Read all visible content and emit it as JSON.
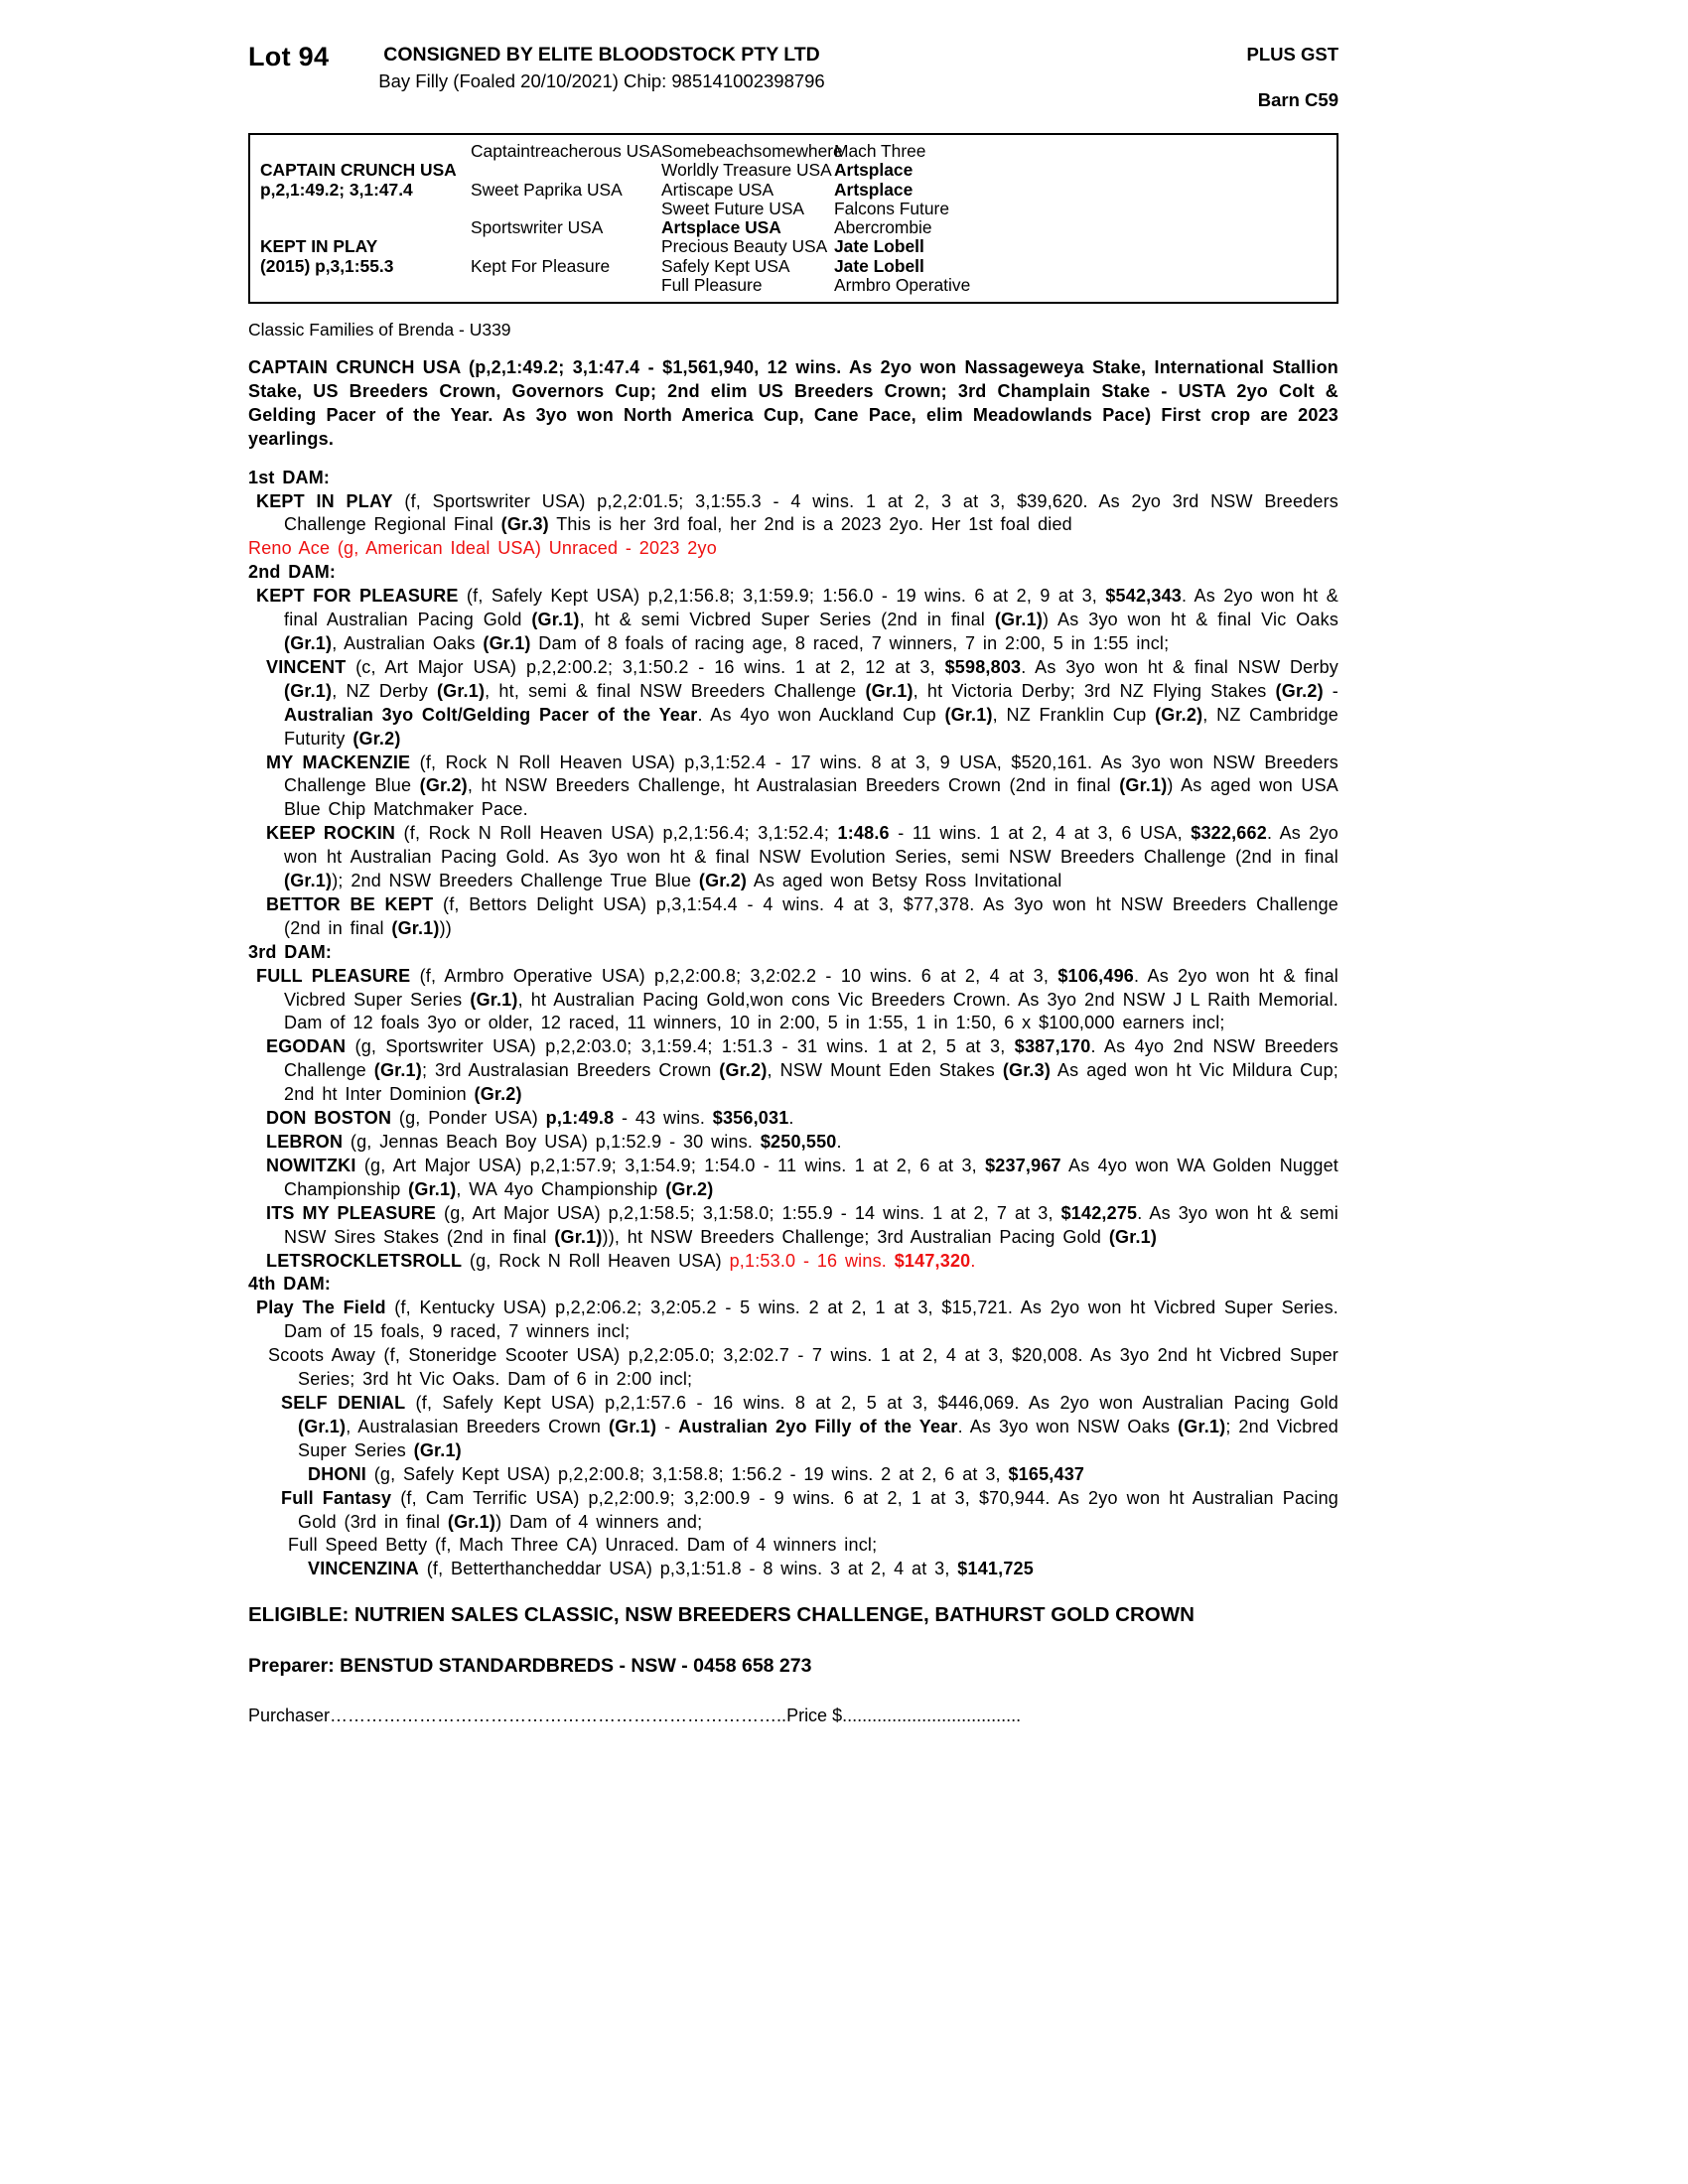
{
  "colors": {
    "accent_red": "#ee1111"
  },
  "header": {
    "lot": "Lot 94",
    "consignor": "CONSIGNED BY ELITE BLOODSTOCK PTY LTD",
    "plus_gst": "PLUS GST",
    "description": "Bay Filly (Foaled 20/10/2021) Chip: 985141002398796",
    "barn": "Barn C59"
  },
  "pedigree": {
    "sire": {
      "name": "CAPTAIN CRUNCH USA",
      "record": "p,2,1:49.2; 3,1:47.4"
    },
    "dam": {
      "name": "KEPT IN PLAY",
      "record": "(2015) p,3,1:55.3"
    },
    "gen2": [
      {
        "t": "Captaintreacherous USA"
      },
      {
        "t": "Sweet Paprika USA"
      },
      {
        "t": "Sportswriter USA"
      },
      {
        "t": "Kept For Pleasure"
      }
    ],
    "gen3": [
      {
        "t": "Somebeachsomewhere"
      },
      {
        "t": "Worldly Treasure USA"
      },
      {
        "t": "Artiscape USA"
      },
      {
        "t": "Sweet Future USA"
      },
      {
        "t": "Artsplace USA",
        "b": true
      },
      {
        "t": "Precious Beauty USA"
      },
      {
        "t": "Safely Kept USA"
      },
      {
        "t": "Full Pleasure"
      }
    ],
    "gen4": [
      {
        "t": "Mach Three"
      },
      {
        "t": "Artsplace",
        "b": true
      },
      {
        "t": "Artsplace",
        "b": true
      },
      {
        "t": "Falcons Future"
      },
      {
        "t": "Abercrombie"
      },
      {
        "t": "Jate Lobell",
        "b": true
      },
      {
        "t": "Jate Lobell",
        "b": true
      },
      {
        "t": "Armbro Operative"
      }
    ]
  },
  "family_line": "Classic Families of Brenda - U339",
  "body": {
    "sire_para": [
      {
        "t": "CAPTAIN CRUNCH USA (p,2,1:49.2; 3,1:47.4 - $1,561,940, 12 wins. As 2yo won Nassageweya Stake, International Stallion Stake, US Breeders Crown, Governors Cup; 2nd elim US Breeders Crown; 3rd Champlain Stake - USTA 2yo Colt & Gelding Pacer of the Year. As 3yo won North America Cup, Cane Pace, elim Meadowlands Pace) First crop are 2023 yearlings.",
        "b": true
      }
    ],
    "dam1_heading": "1st DAM:",
    "kept_in_play": [
      {
        "t": "KEPT IN PLAY",
        "b": true
      },
      {
        "t": " (f, Sportswriter USA) p,2,2:01.5; 3,1:55.3 - 4 wins. 1 at 2, 3 at 3, $39,620. As 2yo 3rd NSW Breeders Challenge Regional Final "
      },
      {
        "t": "(Gr.3)",
        "b": true
      },
      {
        "t": " This is her 3rd foal, her 2nd is a 2023 2yo. Her 1st foal died"
      }
    ],
    "reno_ace": [
      {
        "t": "Reno Ace (g, American Ideal USA) Unraced - 2023 2yo",
        "r": true
      }
    ],
    "dam2_heading": "2nd DAM:",
    "kept_for_pleasure": [
      {
        "t": "KEPT FOR PLEASURE",
        "b": true
      },
      {
        "t": " (f, Safely Kept USA) p,2,1:56.8; 3,1:59.9; 1:56.0 - 19 wins. 6 at 2, 9 at 3, "
      },
      {
        "t": "$542,343",
        "b": true
      },
      {
        "t": ". As 2yo won ht & final Australian Pacing Gold "
      },
      {
        "t": "(Gr.1)",
        "b": true
      },
      {
        "t": ", ht & semi Vicbred Super Series (2nd in final "
      },
      {
        "t": "(Gr.1)",
        "b": true
      },
      {
        "t": ") As 3yo won ht & final Vic Oaks "
      },
      {
        "t": "(Gr.1)",
        "b": true
      },
      {
        "t": ", Australian Oaks "
      },
      {
        "t": "(Gr.1)",
        "b": true
      },
      {
        "t": " Dam of 8 foals of racing age, 8 raced, 7 winners, 7 in 2:00, 5 in 1:55 incl;"
      }
    ],
    "vincent": [
      {
        "t": "VINCENT",
        "b": true
      },
      {
        "t": " (c, Art Major USA) p,2,2:00.2; 3,1:50.2 - 16 wins. 1 at 2, 12 at 3, "
      },
      {
        "t": "$598,803",
        "b": true
      },
      {
        "t": ". As 3yo won ht & final NSW Derby "
      },
      {
        "t": "(Gr.1)",
        "b": true
      },
      {
        "t": ", NZ Derby "
      },
      {
        "t": "(Gr.1)",
        "b": true
      },
      {
        "t": ", ht, semi & final NSW Breeders Challenge "
      },
      {
        "t": "(Gr.1)",
        "b": true
      },
      {
        "t": ", ht Victoria Derby; 3rd NZ Flying Stakes "
      },
      {
        "t": "(Gr.2)",
        "b": true
      },
      {
        "t": " - "
      },
      {
        "t": "Australian 3yo Colt/Gelding Pacer of the Year",
        "b": true
      },
      {
        "t": ". As 4yo won Auckland Cup "
      },
      {
        "t": "(Gr.1)",
        "b": true
      },
      {
        "t": ", NZ Franklin Cup "
      },
      {
        "t": "(Gr.2)",
        "b": true
      },
      {
        "t": ", NZ Cambridge Futurity "
      },
      {
        "t": "(Gr.2)",
        "b": true
      }
    ],
    "my_mackenzie": [
      {
        "t": "MY MACKENZIE",
        "b": true
      },
      {
        "t": " (f, Rock N Roll Heaven USA) p,3,1:52.4 - 17 wins. 8 at 3, 9 USA, $520,161. As 3yo won NSW Breeders Challenge Blue "
      },
      {
        "t": "(Gr.2)",
        "b": true
      },
      {
        "t": ", ht NSW Breeders Challenge, ht Australasian Breeders Crown (2nd in final "
      },
      {
        "t": "(Gr.1)",
        "b": true
      },
      {
        "t": ") As aged won USA Blue Chip Matchmaker Pace."
      }
    ],
    "keep_rockin": [
      {
        "t": "KEEP ROCKIN",
        "b": true
      },
      {
        "t": " (f, Rock N Roll Heaven USA) p,2,1:56.4; 3,1:52.4; "
      },
      {
        "t": "1:48.6",
        "b": true
      },
      {
        "t": " - 11 wins. 1 at 2, 4 at 3, 6 USA, "
      },
      {
        "t": "$322,662",
        "b": true
      },
      {
        "t": ". As 2yo won ht Australian Pacing Gold. As 3yo won ht & final NSW Evolution Series, semi NSW Breeders Challenge (2nd in final "
      },
      {
        "t": "(Gr.1)",
        "b": true
      },
      {
        "t": "); 2nd NSW Breeders Challenge True Blue "
      },
      {
        "t": "(Gr.2)",
        "b": true
      },
      {
        "t": " As aged won Betsy Ross Invitational"
      }
    ],
    "bettor_be_kept": [
      {
        "t": "BETTOR BE KEPT",
        "b": true
      },
      {
        "t": " (f, Bettors Delight USA) p,3,1:54.4 - 4 wins. 4 at 3, $77,378. As 3yo won ht NSW Breeders Challenge (2nd in final "
      },
      {
        "t": "(Gr.1)",
        "b": true
      },
      {
        "t": "))"
      }
    ],
    "dam3_heading": "3rd DAM:",
    "full_pleasure": [
      {
        "t": "FULL PLEASURE",
        "b": true
      },
      {
        "t": " (f, Armbro Operative USA) p,2,2:00.8; 3,2:02.2 - 10 wins. 6 at 2, 4 at 3, "
      },
      {
        "t": "$106,496",
        "b": true
      },
      {
        "t": ". As 2yo won ht & final Vicbred Super Series "
      },
      {
        "t": "(Gr.1)",
        "b": true
      },
      {
        "t": ", ht Australian Pacing Gold,won cons Vic Breeders Crown. As 3yo 2nd NSW J L Raith Memorial. Dam of 12 foals 3yo or older, 12 raced, 11 winners, 10 in 2:00, 5 in 1:55, 1 in 1:50, 6 x $100,000 earners incl;"
      }
    ],
    "egodan": [
      {
        "t": "EGODAN",
        "b": true
      },
      {
        "t": " (g, Sportswriter USA) p,2,2:03.0; 3,1:59.4; 1:51.3 - 31 wins. 1 at 2, 5 at 3, "
      },
      {
        "t": "$387,170",
        "b": true
      },
      {
        "t": ". As 4yo 2nd NSW Breeders Challenge "
      },
      {
        "t": "(Gr.1)",
        "b": true
      },
      {
        "t": "; 3rd Australasian Breeders Crown "
      },
      {
        "t": "(Gr.2)",
        "b": true
      },
      {
        "t": ", NSW Mount Eden Stakes "
      },
      {
        "t": "(Gr.3)",
        "b": true
      },
      {
        "t": " As aged won ht Vic Mildura Cup; 2nd ht Inter Dominion "
      },
      {
        "t": "(Gr.2)",
        "b": true
      }
    ],
    "don_boston": [
      {
        "t": "DON BOSTON",
        "b": true
      },
      {
        "t": " (g, Ponder USA) "
      },
      {
        "t": "p,1:49.8",
        "b": true
      },
      {
        "t": " - 43 wins. "
      },
      {
        "t": "$356,031",
        "b": true
      },
      {
        "t": "."
      }
    ],
    "lebron": [
      {
        "t": "LEBRON",
        "b": true
      },
      {
        "t": " (g, Jennas Beach Boy USA) p,1:52.9 - 30 wins. "
      },
      {
        "t": "$250,550",
        "b": true
      },
      {
        "t": "."
      }
    ],
    "nowitzki": [
      {
        "t": "NOWITZKI",
        "b": true
      },
      {
        "t": " (g, Art Major USA) p,2,1:57.9; 3,1:54.9; 1:54.0 - 11 wins. 1 at 2, 6 at 3, "
      },
      {
        "t": "$237,967",
        "b": true
      },
      {
        "t": " As 4yo won WA Golden Nugget Championship "
      },
      {
        "t": "(Gr.1)",
        "b": true
      },
      {
        "t": ", WA 4yo Championship "
      },
      {
        "t": "(Gr.2)",
        "b": true
      }
    ],
    "its_my_pleasure": [
      {
        "t": "ITS MY PLEASURE",
        "b": true
      },
      {
        "t": " (g, Art Major USA) p,2,1:58.5; 3,1:58.0; 1:55.9 - 14 wins. 1 at 2, 7 at 3, "
      },
      {
        "t": "$142,275",
        "b": true
      },
      {
        "t": ". As 3yo won ht & semi NSW Sires Stakes (2nd in final "
      },
      {
        "t": "(Gr.1)",
        "b": true
      },
      {
        "t": ")), ht NSW Breeders Challenge; 3rd Australian Pacing Gold "
      },
      {
        "t": "(Gr.1)",
        "b": true
      }
    ],
    "letsrockletsroll": [
      {
        "t": "LETSROCKLETSROLL",
        "b": true
      },
      {
        "t": " (g, Rock N Roll Heaven USA) "
      },
      {
        "t": "p,1:53.0 - 16 wins. ",
        "r": true
      },
      {
        "t": "$147,320",
        "b": true,
        "r": true
      },
      {
        "t": ".",
        "r": true
      }
    ],
    "dam4_heading": "4th DAM:",
    "play_the_field": [
      {
        "t": "Play The Field",
        "b": true
      },
      {
        "t": " (f, Kentucky USA) p,2,2:06.2; 3,2:05.2 - 5 wins. 2 at 2, 1 at 3, $15,721. As 2yo won ht Vicbred Super Series. Dam of 15 foals, 9 raced, 7 winners incl;"
      }
    ],
    "scoots_away": [
      {
        "t": "Scoots Away (f, Stoneridge Scooter USA) p,2,2:05.0; 3,2:02.7 - 7 wins. 1 at 2, 4 at 3, $20,008. As 3yo 2nd ht Vicbred Super Series; 3rd ht Vic Oaks. Dam of 6 in 2:00 incl;"
      }
    ],
    "self_denial": [
      {
        "t": "SELF DENIAL",
        "b": true
      },
      {
        "t": " (f, Safely Kept USA) p,2,1:57.6 - 16 wins. 8 at 2, 5 at 3, $446,069. As 2yo won Australian Pacing Gold "
      },
      {
        "t": "(Gr.1)",
        "b": true
      },
      {
        "t": ", Australasian Breeders Crown "
      },
      {
        "t": "(Gr.1)",
        "b": true
      },
      {
        "t": " - "
      },
      {
        "t": "Australian 2yo Filly of the Year",
        "b": true
      },
      {
        "t": ". As 3yo won NSW Oaks "
      },
      {
        "t": "(Gr.1)",
        "b": true
      },
      {
        "t": "; 2nd Vicbred Super Series "
      },
      {
        "t": "(Gr.1)",
        "b": true
      }
    ],
    "dhoni": [
      {
        "t": "DHONI",
        "b": true
      },
      {
        "t": " (g, Safely Kept USA) p,2,2:00.8; 3,1:58.8; 1:56.2 - 19 wins. 2 at 2, 6 at 3, "
      },
      {
        "t": "$165,437",
        "b": true
      }
    ],
    "full_fantasy": [
      {
        "t": "Full Fantasy",
        "b": true
      },
      {
        "t": " (f, Cam Terrific USA) p,2,2:00.9; 3,2:00.9 - 9 wins. 6 at 2, 1 at 3, $70,944. As 2yo won ht Australian Pacing Gold (3rd in final "
      },
      {
        "t": "(Gr.1)",
        "b": true
      },
      {
        "t": ") Dam of 4 winners and;"
      }
    ],
    "full_speed_betty": [
      {
        "t": "Full Speed Betty (f, Mach Three CA) Unraced. Dam of 4 winners incl;"
      }
    ],
    "vincenzina": [
      {
        "t": "VINCENZINA",
        "b": true
      },
      {
        "t": " (f, Betterthancheddar USA) p,3,1:51.8 - 8 wins. 3 at 2, 4 at 3, "
      },
      {
        "t": "$141,725",
        "b": true
      }
    ]
  },
  "footer": {
    "eligible": "ELIGIBLE: NUTRIEN SALES CLASSIC, NSW BREEDERS CHALLENGE, BATHURST GOLD CROWN",
    "preparer": "Preparer: BENSTUD STANDARDBREDS - NSW - 0458 658 273",
    "purchaser_label": "Purchaser",
    "purchaser_dots": "…………………………………………………………………..",
    "price_label": "Price $",
    "price_dots": "...................................."
  }
}
